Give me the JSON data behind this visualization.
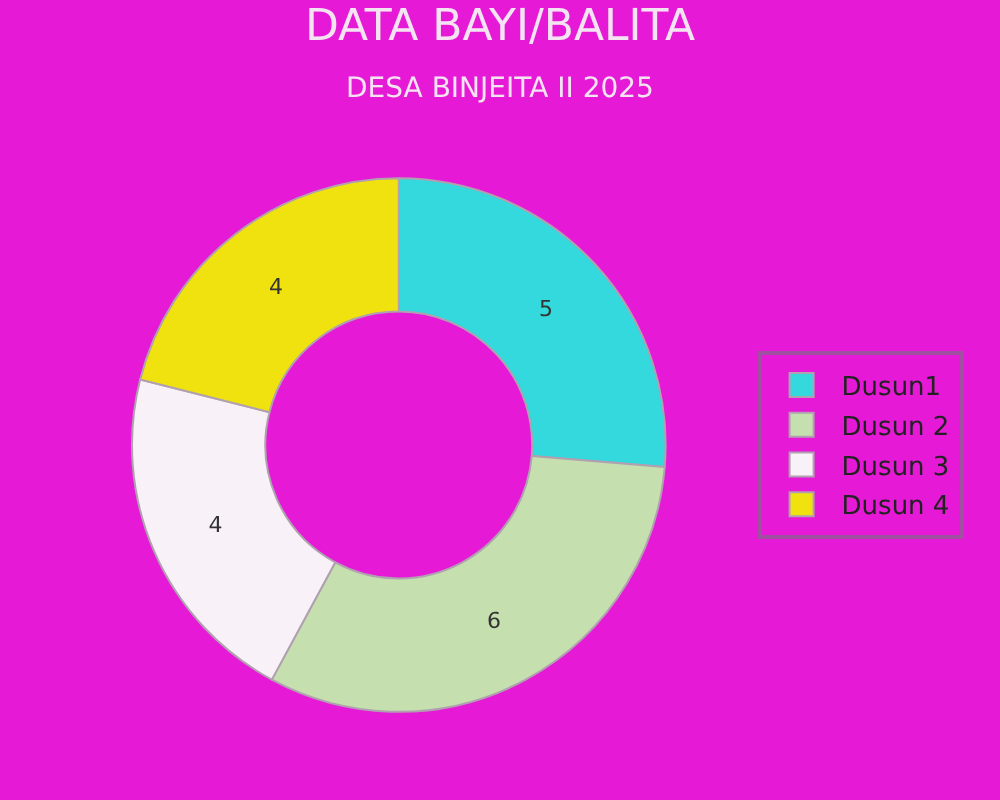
{
  "chart_data": {
    "type": "donut",
    "title": "DATA BAYI/BALITA",
    "subtitle": "DESA BINJEITA II 2025",
    "categories": [
      "Dusun1",
      "Dusun 2",
      "Dusun 3",
      "Dusun 4"
    ],
    "values": [
      5,
      6,
      4,
      4
    ],
    "colors": [
      "#33d9dc",
      "#c5dfae",
      "#f8f2f8",
      "#f0e20e"
    ],
    "data_labels": true,
    "legend": "right"
  }
}
